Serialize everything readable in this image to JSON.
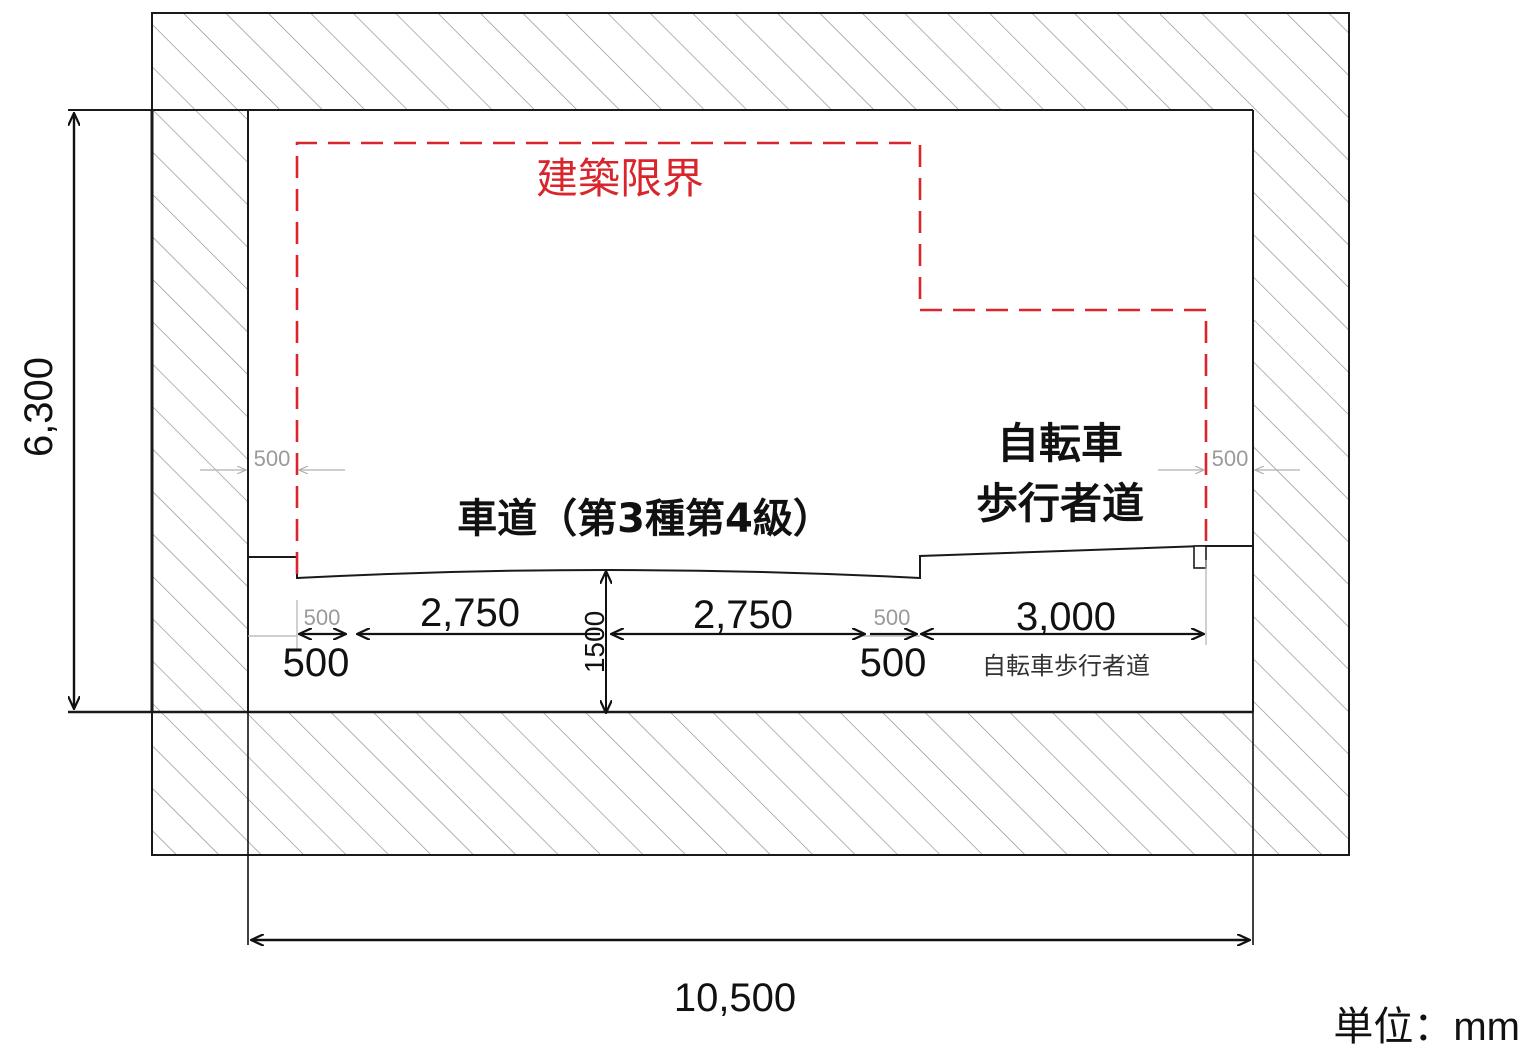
{
  "colors": {
    "clearance": "#d9262c",
    "line": "#1a1a1a",
    "hatch": "#8c8c8c",
    "faint": "#a0a0a0"
  },
  "labels": {
    "clearance_title": "建築限界",
    "roadway": "車道（第3種第4級）",
    "cycle_line1": "自転車",
    "cycle_line2": "歩行者道",
    "cycle_sub": "自転車歩行者道",
    "unit": "単位：mm"
  },
  "dimensions": {
    "total_height": "6,300",
    "total_width": "10,500",
    "lane_left": "2,750",
    "lane_right": "2,750",
    "cycle_width": "3,000",
    "shoulder_left": "500",
    "shoulder_mid": "500",
    "faint_left_top": "500",
    "faint_right_top": "500",
    "faint_left_low": "500",
    "faint_mid_low": "500",
    "crown_slope": "1500"
  }
}
